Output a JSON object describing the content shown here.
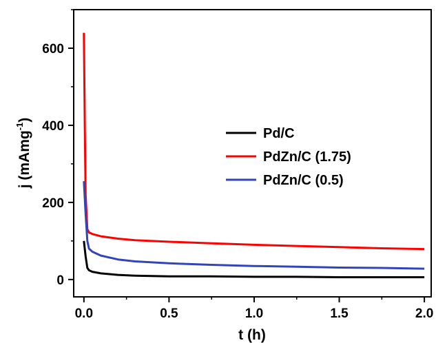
{
  "chart_data": {
    "type": "line",
    "xlabel": "t (h)",
    "ylabel": "j (mAmg-1)",
    "ylabel_main": "j (mAmg",
    "ylabel_sup": "-1",
    "ylabel_close": ")",
    "xlim": [
      -0.06,
      2.04
    ],
    "ylim": [
      -45,
      700
    ],
    "x_ticks": [
      0.0,
      0.5,
      1.0,
      1.5,
      2.0
    ],
    "x_tick_labels": [
      "0.0",
      "0.5",
      "1.0",
      "1.5",
      "2.0"
    ],
    "y_ticks": [
      0,
      200,
      400,
      600
    ],
    "y_tick_labels": [
      "0",
      "200",
      "400",
      "600"
    ],
    "grid": false,
    "legend_position": "center-right",
    "series": [
      {
        "name": "Pd/C",
        "color": "#000000",
        "x": [
          0.0,
          0.01,
          0.02,
          0.03,
          0.05,
          0.1,
          0.2,
          0.3,
          0.4,
          0.5,
          0.75,
          1.0,
          1.25,
          1.5,
          1.75,
          2.0
        ],
        "y": [
          100,
          60,
          30,
          24,
          20,
          16,
          12,
          10,
          9,
          8,
          8,
          7,
          7,
          6,
          6,
          6
        ]
      },
      {
        "name": "PdZn/C (1.75)",
        "color": "#ff0000",
        "x": [
          0.0,
          0.005,
          0.01,
          0.02,
          0.03,
          0.05,
          0.1,
          0.2,
          0.3,
          0.5,
          0.75,
          1.0,
          1.25,
          1.5,
          1.75,
          2.0
        ],
        "y": [
          640,
          400,
          220,
          130,
          122,
          118,
          112,
          106,
          102,
          98,
          94,
          90,
          87,
          84,
          81,
          79
        ]
      },
      {
        "name": "PdZn/C (0.5)",
        "color": "#3344bb",
        "x": [
          0.0,
          0.01,
          0.02,
          0.03,
          0.05,
          0.1,
          0.2,
          0.3,
          0.5,
          0.75,
          1.0,
          1.25,
          1.5,
          1.75,
          2.0
        ],
        "y": [
          255,
          170,
          100,
          80,
          72,
          62,
          52,
          47,
          42,
          38,
          35,
          33,
          31,
          30,
          28
        ]
      }
    ]
  }
}
